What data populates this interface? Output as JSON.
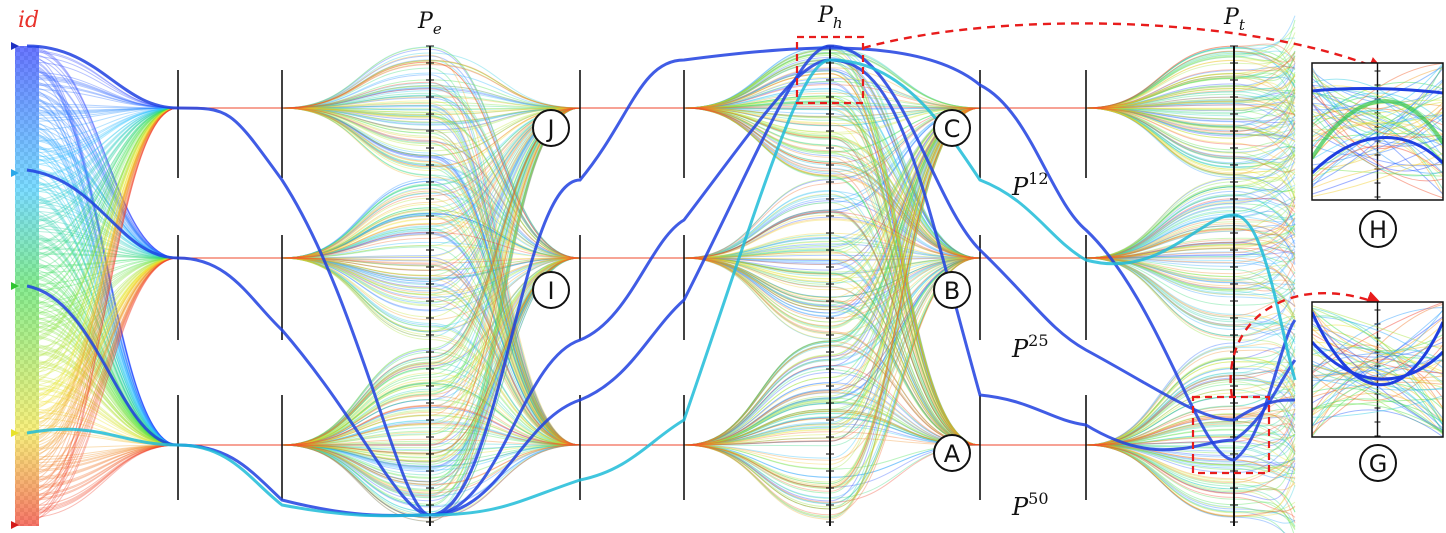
{
  "axes": {
    "id": "id",
    "pe": {
      "base": "P",
      "sub": "e"
    },
    "ph": {
      "base": "P",
      "sub": "h"
    },
    "pt": {
      "base": "P",
      "sub": "t"
    }
  },
  "percentiles": [
    {
      "base": "P",
      "sup": "12"
    },
    {
      "base": "P",
      "sup": "25"
    },
    {
      "base": "P",
      "sup": "50"
    }
  ],
  "markers": [
    "J",
    "I",
    "C",
    "B",
    "A",
    "H",
    "G"
  ],
  "colors": {
    "id_label": "#e8322b",
    "highlight": "#1f3fe0",
    "annotation": "#e81c1c",
    "axis": "#111111"
  }
}
